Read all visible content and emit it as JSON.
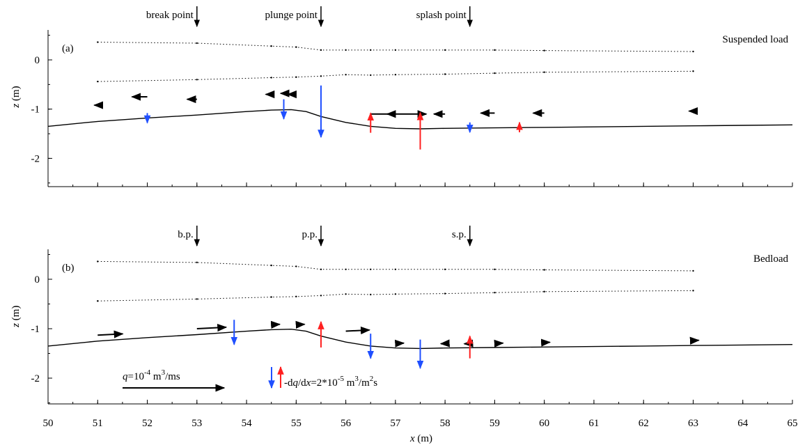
{
  "chart_data": {
    "type": "line",
    "xlabel": "x (m)",
    "xlim": [
      50,
      65
    ],
    "xticks": [
      50,
      51,
      52,
      53,
      54,
      55,
      56,
      57,
      58,
      59,
      60,
      61,
      62,
      63,
      64,
      65
    ],
    "colors": {
      "axis": "#000000",
      "erosion": "#1f4fff",
      "deposition": "#ff2020",
      "flux": "#000000"
    },
    "panels": [
      {
        "label": "(a)",
        "title": "Suspended load",
        "ylabel": "z (m)",
        "ylim": [
          -2.55,
          0.6
        ],
        "yticks": [
          -2,
          -1,
          0
        ],
        "annotations": [
          {
            "text": "break point",
            "x": 53
          },
          {
            "text": "plunge point",
            "x": 55.5
          },
          {
            "text": "splash point",
            "x": 58.5
          }
        ],
        "crest": {
          "x": [
            51,
            53,
            54.5,
            55,
            55.5,
            56,
            56.5,
            57,
            58,
            59,
            60,
            63
          ],
          "y": [
            0.36,
            0.34,
            0.28,
            0.26,
            0.2,
            0.2,
            0.2,
            0.2,
            0.2,
            0.2,
            0.19,
            0.17
          ]
        },
        "trough": {
          "x": [
            51,
            53,
            54.5,
            55,
            55.5,
            56,
            56.5,
            57,
            58,
            59,
            60,
            63
          ],
          "y": [
            -0.44,
            -0.4,
            -0.36,
            -0.35,
            -0.33,
            -0.3,
            -0.31,
            -0.3,
            -0.29,
            -0.27,
            -0.25,
            -0.23
          ]
        },
        "bed": {
          "x": [
            50,
            51,
            52,
            53,
            54,
            54.5,
            54.9,
            55.2,
            55.5,
            56,
            56.5,
            57,
            57.5,
            58,
            59,
            60,
            61,
            62,
            63,
            64,
            65
          ],
          "y": [
            -1.35,
            -1.25,
            -1.18,
            -1.12,
            -1.05,
            -1.02,
            -1.01,
            -1.05,
            -1.15,
            -1.27,
            -1.35,
            -1.39,
            -1.4,
            -1.39,
            -1.38,
            -1.37,
            -1.36,
            -1.35,
            -1.34,
            -1.33,
            -1.32
          ]
        },
        "flux_arrows": [
          {
            "x": 51,
            "z": -0.92,
            "q": -0.12
          },
          {
            "x": 52,
            "z": -0.75,
            "q": -0.55
          },
          {
            "x": 53,
            "z": -0.8,
            "q": -0.35
          },
          {
            "x": 54.5,
            "z": -0.7,
            "q": -0.2
          },
          {
            "x": 54.8,
            "z": -0.68,
            "q": -0.2
          },
          {
            "x": 55,
            "z": -0.7,
            "q": -0.3
          },
          {
            "x": 56.5,
            "z": -1.1,
            "q": 2.0
          },
          {
            "x": 57,
            "z": -1.1,
            "q": -0.3
          },
          {
            "x": 58,
            "z": -1.1,
            "q": -0.4
          },
          {
            "x": 59,
            "z": -1.08,
            "q": -0.5
          },
          {
            "x": 60,
            "z": -1.08,
            "q": -0.4
          },
          {
            "x": 63,
            "z": -1.04,
            "q": -0.15
          }
        ],
        "dqdx_arrows": [
          {
            "x": 52,
            "base": -1.08,
            "value": 0.2
          },
          {
            "x": 54.75,
            "base": -0.8,
            "value": 0.4
          },
          {
            "x": 55.5,
            "base": -0.52,
            "value": 1.05
          },
          {
            "x": 56.5,
            "base": -1.48,
            "value": -0.4
          },
          {
            "x": 57.5,
            "base": -1.82,
            "value": -0.75
          },
          {
            "x": 58.5,
            "base": -1.27,
            "value": 0.2
          },
          {
            "x": 59.5,
            "base": -1.47,
            "value": -0.2
          }
        ]
      },
      {
        "label": "(b)",
        "title": "Bedload",
        "ylabel": "z (m)",
        "ylim": [
          -2.55,
          0.6
        ],
        "yticks": [
          -2,
          -1,
          0
        ],
        "annotations": [
          {
            "text": "b.p.",
            "x": 53
          },
          {
            "text": "p.p.",
            "x": 55.5
          },
          {
            "text": "s.p.",
            "x": 58.5
          }
        ],
        "crest": {
          "x": [
            51,
            53,
            54.5,
            55,
            55.5,
            56,
            56.5,
            57,
            58,
            59,
            60,
            63
          ],
          "y": [
            0.36,
            0.34,
            0.28,
            0.26,
            0.2,
            0.2,
            0.2,
            0.2,
            0.2,
            0.2,
            0.19,
            0.17
          ]
        },
        "trough": {
          "x": [
            51,
            53,
            54.5,
            55,
            55.5,
            56,
            56.5,
            57,
            58,
            59,
            60,
            63
          ],
          "y": [
            -0.44,
            -0.4,
            -0.36,
            -0.35,
            -0.33,
            -0.3,
            -0.31,
            -0.3,
            -0.29,
            -0.27,
            -0.25,
            -0.23
          ]
        },
        "bed": {
          "x": [
            50,
            51,
            52,
            53,
            54,
            54.5,
            54.9,
            55.2,
            55.5,
            56,
            56.5,
            57,
            57.5,
            58,
            59,
            60,
            61,
            62,
            63,
            64,
            65
          ],
          "y": [
            -1.35,
            -1.25,
            -1.18,
            -1.12,
            -1.05,
            -1.02,
            -1.01,
            -1.05,
            -1.15,
            -1.27,
            -1.35,
            -1.39,
            -1.4,
            -1.39,
            -1.38,
            -1.37,
            -1.36,
            -1.35,
            -1.34,
            -1.33,
            -1.32
          ]
        },
        "flux_arrows": [
          {
            "x": 51,
            "z": -1.13,
            "q": 0.9
          },
          {
            "x": 53,
            "z": -1.0,
            "q": 1.05
          },
          {
            "x": 54.5,
            "z": -0.92,
            "q": 0.3
          },
          {
            "x": 55,
            "z": -0.92,
            "q": 0.3
          },
          {
            "x": 56,
            "z": -1.05,
            "q": 0.85
          },
          {
            "x": 57,
            "z": -1.3,
            "q": 0.3
          },
          {
            "x": 58,
            "z": -1.3,
            "q": -0.15
          },
          {
            "x": 58.5,
            "z": -1.3,
            "q": -0.2
          },
          {
            "x": 59,
            "z": -1.3,
            "q": 0.3
          },
          {
            "x": 60,
            "z": -1.28,
            "q": 0.2
          },
          {
            "x": 63,
            "z": -1.24,
            "q": 0.2
          }
        ],
        "dqdx_arrows": [
          {
            "x": 53.75,
            "base": -0.82,
            "value": 0.5
          },
          {
            "x": 55.5,
            "base": -1.38,
            "value": -0.52
          },
          {
            "x": 56.5,
            "base": -1.1,
            "value": 0.5
          },
          {
            "x": 57.5,
            "base": -1.22,
            "value": 0.58
          },
          {
            "x": 58.5,
            "base": -1.6,
            "value": -0.45
          }
        ]
      }
    ],
    "legend": {
      "flux_label_prefix": "q",
      "flux_label_value": "=10",
      "flux_label_exp": "-4",
      "flux_label_unit": " m",
      "flux_label_unit_exp": "3",
      "flux_label_tail": "/ms",
      "dqdx_label_a": "-d",
      "dqdx_label_q": "q",
      "dqdx_label_b": "/d",
      "dqdx_label_x": "x",
      "dqdx_label_c": "=2*10",
      "dqdx_label_exp": "-5",
      "dqdx_label_d": " m",
      "dqdx_label_exp2": "3",
      "dqdx_label_e": "/m",
      "dqdx_label_exp3": "2",
      "dqdx_label_f": "s"
    }
  }
}
